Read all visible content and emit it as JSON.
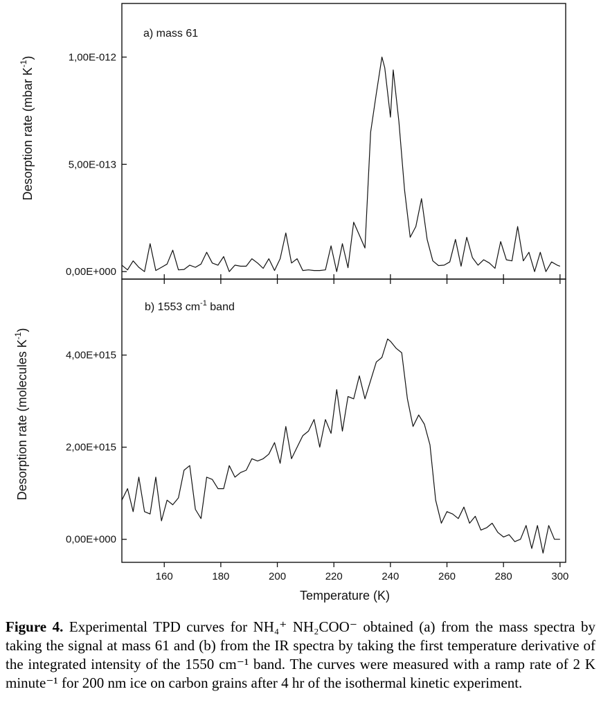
{
  "chart_data": [
    {
      "type": "line",
      "panel_label": "a) mass 61",
      "ylabel": "Desorption rate (mbar K",
      "ylabel_sup": "-1",
      "ylabel_end": ")",
      "xlim": [
        145,
        302
      ],
      "ylim": [
        -3.5e-14,
        1.25e-12
      ],
      "yticks": [
        0,
        5e-13,
        1e-12
      ],
      "ytick_labels": [
        "0,00E+000",
        "5,00E-013",
        "1,00E-012"
      ],
      "series": [
        {
          "x": [
            145,
            147,
            149,
            151,
            153,
            155,
            157,
            159,
            161,
            163,
            165,
            167,
            169,
            171,
            173,
            175,
            177,
            179,
            181,
            183,
            185,
            187,
            189,
            191,
            193,
            195,
            197,
            199,
            201,
            203,
            205,
            207,
            209,
            211,
            213,
            215,
            217,
            219,
            221,
            223,
            225,
            227,
            229,
            231,
            233,
            235,
            237,
            238,
            240,
            241,
            243,
            245,
            247,
            249,
            251,
            253,
            255,
            257,
            259,
            261,
            263,
            265,
            267,
            269,
            271,
            273,
            275,
            277,
            279,
            281,
            283,
            285,
            287,
            289,
            291,
            293,
            295,
            297,
            299,
            300
          ],
          "y": [
            3e-14,
            8e-15,
            5e-14,
            2e-14,
            0,
            1.3e-13,
            5e-15,
            2e-14,
            3.5e-14,
            1e-13,
            8e-15,
            1e-14,
            3e-14,
            2e-14,
            3.5e-14,
            9e-14,
            4e-14,
            3e-14,
            7e-14,
            0,
            3e-14,
            2.5e-14,
            2.5e-14,
            6e-14,
            4e-14,
            1.5e-14,
            6e-14,
            5e-15,
            6e-14,
            1.8e-13,
            4e-14,
            6e-14,
            5e-15,
            8e-15,
            5e-15,
            5e-15,
            8e-15,
            1.2e-13,
            0,
            1.3e-13,
            1.8e-14,
            2.3e-13,
            1.7e-13,
            1.1e-13,
            6.5e-13,
            8.3e-13,
            1e-12,
            9.5e-13,
            7.2e-13,
            9.4e-13,
            7e-13,
            3.8e-13,
            1.6e-13,
            2.1e-13,
            3.4e-13,
            1.5e-13,
            5e-14,
            2.8e-14,
            3e-14,
            4.5e-14,
            1.5e-13,
            2.5e-14,
            1.6e-13,
            6.5e-14,
            3e-14,
            5.5e-14,
            4e-14,
            1.5e-14,
            1.4e-13,
            5.5e-14,
            5e-14,
            2.1e-13,
            5e-14,
            9e-14,
            0,
            9e-14,
            0,
            4.5e-14,
            3e-14,
            2.5e-14
          ]
        }
      ]
    },
    {
      "type": "line",
      "panel_label": "b) 1553 cm",
      "panel_label_sup": "-1",
      "panel_label_end": " band",
      "ylabel": "Desorption rate (molecules K",
      "ylabel_sup": "-1",
      "ylabel_end": ")",
      "xlabel": "Temperature (K)",
      "xlim": [
        145,
        302
      ],
      "ylim": [
        -500000000000000.0,
        5650000000000000.0
      ],
      "xticks": [
        160,
        180,
        200,
        220,
        240,
        260,
        280,
        300
      ],
      "yticks": [
        0,
        2000000000000000.0,
        4000000000000000.0
      ],
      "ytick_labels": [
        "0,00E+000",
        "2,00E+015",
        "4,00E+015"
      ],
      "series": [
        {
          "x": [
            145,
            147,
            149,
            151,
            153,
            155,
            157,
            159,
            161,
            163,
            165,
            167,
            169,
            171,
            173,
            175,
            177,
            179,
            181,
            183,
            185,
            187,
            189,
            191,
            193,
            195,
            197,
            199,
            201,
            203,
            205,
            207,
            209,
            211,
            213,
            215,
            217,
            219,
            221,
            223,
            225,
            227,
            229,
            231,
            233,
            235,
            237,
            239,
            240,
            242,
            244,
            246,
            248,
            250,
            252,
            254,
            256,
            258,
            260,
            262,
            264,
            266,
            268,
            270,
            272,
            274,
            276,
            278,
            280,
            282,
            284,
            286,
            288,
            290,
            292,
            294,
            296,
            298,
            300
          ],
          "y": [
            850000000000000.0,
            1100000000000000.0,
            600000000000000.0,
            1350000000000000.0,
            600000000000000.0,
            550000000000000.0,
            1350000000000000.0,
            400000000000000.0,
            850000000000000.0,
            750000000000000.0,
            900000000000000.0,
            1500000000000000.0,
            1600000000000000.0,
            650000000000000.0,
            450000000000000.0,
            1350000000000000.0,
            1300000000000000.0,
            1100000000000000.0,
            1100000000000000.0,
            1600000000000000.0,
            1350000000000000.0,
            1450000000000000.0,
            1500000000000000.0,
            1750000000000000.0,
            1700000000000000.0,
            1750000000000000.0,
            1850000000000000.0,
            2100000000000000.0,
            1650000000000000.0,
            2450000000000000.0,
            1750000000000000.0,
            2000000000000000.0,
            2250000000000000.0,
            2350000000000000.0,
            2600000000000000.0,
            2000000000000000.0,
            2600000000000000.0,
            2300000000000000.0,
            3250000000000000.0,
            2350000000000000.0,
            3100000000000000.0,
            3050000000000000.0,
            3550000000000000.0,
            3050000000000000.0,
            3450000000000000.0,
            3850000000000000.0,
            3950000000000000.0,
            4350000000000000.0,
            4300000000000000.0,
            4150000000000000.0,
            4050000000000000.0,
            3050000000000000.0,
            2450000000000000.0,
            2700000000000000.0,
            2500000000000000.0,
            2050000000000000.0,
            850000000000000.0,
            350000000000000.0,
            600000000000000.0,
            550000000000000.0,
            450000000000000.0,
            700000000000000.0,
            350000000000000.0,
            500000000000000.0,
            200000000000000.0,
            250000000000000.0,
            350000000000000.0,
            150000000000000.0,
            50000000000000.0,
            100000000000000.0,
            -50000000000000.0,
            0,
            300000000000000.0,
            -200000000000000.0,
            300000000000000.0,
            -300000000000000.0,
            300000000000000.0,
            0,
            0
          ]
        }
      ]
    }
  ],
  "caption": {
    "title": "Figure 4.",
    "text": "Experimental TPD curves for NH₄⁺ NH₂COO⁻ obtained (a) from the mass spectra by taking the signal at mass 61 and (b) from the IR spectra by taking the first temperature derivative of the integrated intensity of the 1550 cm⁻¹ band. The curves were measured with a ramp rate of 2 K minute⁻¹ for 200 nm ice on carbon grains after 4 hr of the isothermal kinetic experiment."
  }
}
